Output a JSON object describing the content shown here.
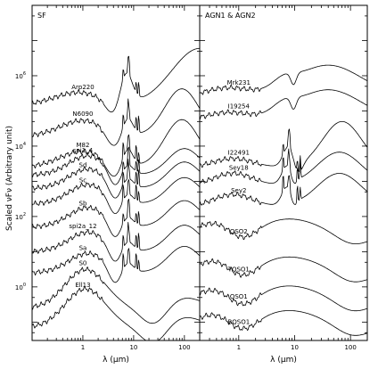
{
  "chart_data": {
    "type": "line",
    "ylabel": "Scaled νFν (Arbitrary unit)",
    "yscale": "log",
    "xscale": "log",
    "ylim": [
      0.03,
      100000000
    ],
    "y_ticks": [
      {
        "value": 1,
        "label": "10^0"
      },
      {
        "value": 100,
        "label": "10^2"
      },
      {
        "value": 10000,
        "label": "10^4"
      },
      {
        "value": 1000000,
        "label": "10^6"
      }
    ],
    "panels": [
      {
        "title": "SF",
        "xlabel": "λ (μm)",
        "xlim": [
          0.1,
          200
        ],
        "x_ticks": [
          {
            "value": 1,
            "label": "1"
          },
          {
            "value": 10,
            "label": "10"
          },
          {
            "value": 100,
            "label": "100"
          }
        ],
        "series": [
          {
            "name": "Arp220",
            "scale": 1500000,
            "shape": "ulirg"
          },
          {
            "name": "N6090",
            "scale": 300000,
            "shape": "starburst"
          },
          {
            "name": "M82",
            "scale": 40000,
            "shape": "starburst"
          },
          {
            "name": "spi1_4",
            "scale": 12000,
            "shape": "spiral"
          },
          {
            "name": "Sd",
            "scale": 5000,
            "shape": "spiral"
          },
          {
            "name": "Sc",
            "scale": 1800,
            "shape": "spiral"
          },
          {
            "name": "Sb",
            "scale": 400,
            "shape": "spiral"
          },
          {
            "name": "spi2a_12",
            "scale": 80,
            "shape": "spiral"
          },
          {
            "name": "Sa",
            "scale": 20,
            "shape": "spiral"
          },
          {
            "name": "S0",
            "scale": 2.5,
            "shape": "early"
          },
          {
            "name": "Ell13",
            "scale": 0.7,
            "shape": "early"
          }
        ]
      },
      {
        "title": "AGN1 & AGN2",
        "xlabel": "λ (μm)",
        "xlim": [
          0.2,
          200
        ],
        "x_ticks": [
          {
            "value": 1,
            "label": "1"
          },
          {
            "value": 10,
            "label": "10"
          },
          {
            "value": 100,
            "label": "100"
          }
        ],
        "series": [
          {
            "name": "Mrk231",
            "scale": 1000000,
            "shape": "mrk"
          },
          {
            "name": "I19254",
            "scale": 200000,
            "shape": "mrk"
          },
          {
            "name": "I22491",
            "scale": 25000,
            "shape": "ulirg_agn"
          },
          {
            "name": "Sey18",
            "scale": 6000,
            "shape": "sey"
          },
          {
            "name": "Sey2",
            "scale": 1500,
            "shape": "sey"
          },
          {
            "name": "QSO2",
            "scale": 120,
            "shape": "qso"
          },
          {
            "name": "TQSO1",
            "scale": 10,
            "shape": "qso"
          },
          {
            "name": "QSO1",
            "scale": 1.5,
            "shape": "qso"
          },
          {
            "name": "BQSO1",
            "scale": 0.3,
            "shape": "qso"
          }
        ]
      }
    ]
  }
}
